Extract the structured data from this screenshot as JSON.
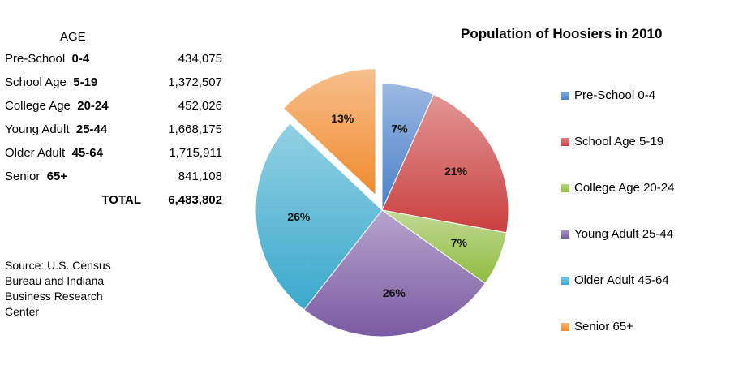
{
  "title": "Population of Hoosiers in 2010",
  "table": {
    "header": "AGE",
    "rows": [
      {
        "name": "Pre-School",
        "range": "0-4",
        "value": "434,075"
      },
      {
        "name": "School Age",
        "range": "5-19",
        "value": "1,372,507"
      },
      {
        "name": "College Age",
        "range": "20-24",
        "value": "452,026"
      },
      {
        "name": "Young Adult",
        "range": "25-44",
        "value": "1,668,175"
      },
      {
        "name": "Older Adult",
        "range": "45-64",
        "value": "1,715,911"
      },
      {
        "name": "Senior",
        "range": "65+",
        "value": "841,108"
      }
    ],
    "total_label": "TOTAL",
    "total_value": "6,483,802"
  },
  "source": "Source: U.S. Census Bureau and Indiana Business Research Center",
  "chart_data": {
    "type": "pie",
    "title": "Population of Hoosiers in 2010",
    "legend_position": "right",
    "exploded_slice": "Senior 65+",
    "slices": [
      {
        "label": "Pre-School 0-4",
        "value": 434075,
        "percent_label": "7%",
        "color": "#4a7fc8"
      },
      {
        "label": "School Age 5-19",
        "value": 1372507,
        "percent_label": "21%",
        "color": "#c9403f"
      },
      {
        "label": "College Age 20-24",
        "value": 452026,
        "percent_label": "7%",
        "color": "#8fbb3e"
      },
      {
        "label": "Young Adult 25-44",
        "value": 1668175,
        "percent_label": "26%",
        "color": "#7a5aa3"
      },
      {
        "label": "Older Adult 45-64",
        "value": 1715911,
        "percent_label": "26%",
        "color": "#3aa9cc"
      },
      {
        "label": "Senior 65+",
        "value": 841108,
        "percent_label": "13%",
        "color": "#f08a2e"
      }
    ],
    "legend": [
      "Pre-School  0-4",
      "School Age  5-19",
      "College Age  20-24",
      "Young Adult  25-44",
      "Older Adult  45-64",
      "Senior  65+"
    ]
  }
}
